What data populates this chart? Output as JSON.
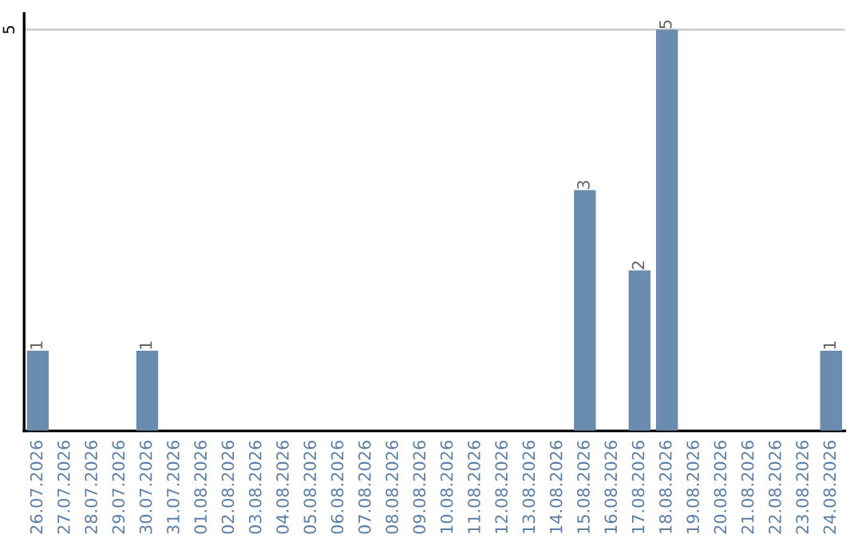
{
  "chart_data": {
    "type": "bar",
    "categories": [
      "26.07.2026",
      "27.07.2026",
      "28.07.2026",
      "29.07.2026",
      "30.07.2026",
      "31.07.2026",
      "01.08.2026",
      "02.08.2026",
      "03.08.2026",
      "04.08.2026",
      "05.08.2026",
      "06.08.2026",
      "07.08.2026",
      "08.08.2026",
      "09.08.2026",
      "10.08.2026",
      "11.08.2026",
      "12.08.2026",
      "13.08.2026",
      "14.08.2026",
      "15.08.2026",
      "16.08.2026",
      "17.08.2026",
      "18.08.2026",
      "19.08.2026",
      "20.08.2026",
      "21.08.2026",
      "22.08.2026",
      "23.08.2026",
      "24.08.2026"
    ],
    "values": [
      1,
      0,
      0,
      0,
      1,
      0,
      0,
      0,
      0,
      0,
      0,
      0,
      0,
      0,
      0,
      0,
      0,
      0,
      0,
      0,
      3,
      0,
      2,
      5,
      0,
      0,
      0,
      0,
      0,
      1
    ],
    "value_labels": [
      "1",
      null,
      null,
      null,
      "1",
      null,
      null,
      null,
      null,
      null,
      null,
      null,
      null,
      null,
      null,
      null,
      null,
      null,
      null,
      null,
      "3",
      null,
      "2",
      "5",
      null,
      null,
      null,
      null,
      null,
      "1"
    ],
    "color": "#6a8caf",
    "ylim": [
      0,
      5.2
    ],
    "yticks": [
      5
    ],
    "grid": "y"
  }
}
